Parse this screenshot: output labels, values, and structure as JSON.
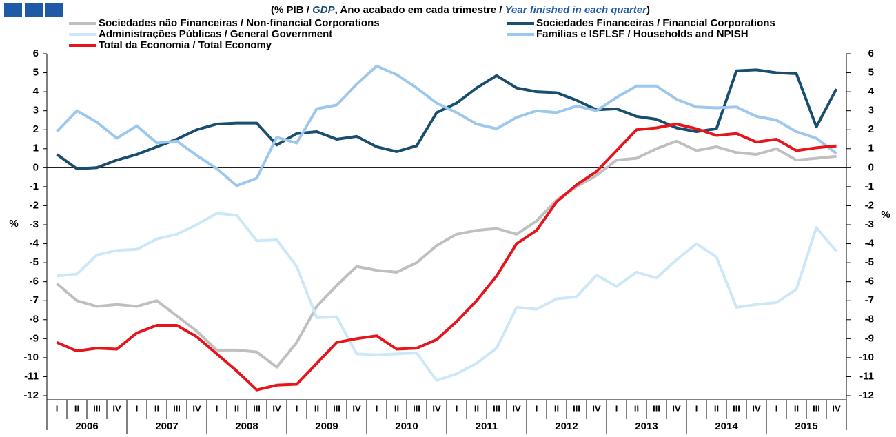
{
  "chart_data": {
    "type": "line",
    "title_parts": [
      "(% PIB / ",
      "GDP",
      ", Ano acabado em cada trimestre / ",
      "Year finished in each quarter",
      ")"
    ],
    "y_label": "%",
    "y2_label": "%",
    "categories": [
      "I",
      "II",
      "III",
      "IV",
      "I",
      "II",
      "III",
      "IV",
      "I",
      "II",
      "III",
      "IV",
      "I",
      "II",
      "III",
      "IV",
      "I",
      "II",
      "III",
      "IV",
      "I",
      "II",
      "III",
      "IV",
      "I",
      "II",
      "III",
      "IV",
      "I",
      "II",
      "III",
      "IV",
      "I",
      "II",
      "III",
      "IV",
      "I",
      "II",
      "III",
      "IV"
    ],
    "years": [
      "2006",
      "2007",
      "2008",
      "2009",
      "2010",
      "2011",
      "2012",
      "2013",
      "2014",
      "2015"
    ],
    "ylim": [
      -12,
      6
    ],
    "yticks": [
      -12,
      -11,
      -10,
      -9,
      -8,
      -7,
      -6,
      -5,
      -4,
      -3,
      -2,
      -1,
      0,
      1,
      2,
      3,
      4,
      5,
      6
    ],
    "y2lim": [
      -12,
      6
    ],
    "y2ticks": [
      -12,
      -11,
      -10,
      -9,
      -8,
      -7,
      -6,
      -5,
      -4,
      -3,
      -2,
      -1,
      0,
      1,
      2,
      3,
      4,
      5,
      6
    ],
    "series": [
      {
        "name": "Sociedades não Financeiras / Non-financial Corporations",
        "color": "#bfbfbf",
        "values": [
          -6.1,
          -7.0,
          -7.3,
          -7.2,
          -7.3,
          -7.0,
          -7.8,
          -8.6,
          -9.6,
          -9.6,
          -9.7,
          -10.5,
          -9.2,
          -7.3,
          -6.2,
          -5.2,
          -5.4,
          -5.5,
          -5.0,
          -4.1,
          -3.5,
          -3.3,
          -3.2,
          -3.5,
          -2.8,
          -1.7,
          -1.0,
          -0.4,
          0.4,
          0.5,
          1.0,
          1.4,
          0.9,
          1.1,
          0.8,
          0.7,
          1.0,
          0.4,
          0.5,
          0.6
        ]
      },
      {
        "name": "Sociedades Financeiras / Financial Corporations",
        "color": "#1a4e6e",
        "values": [
          0.7,
          -0.05,
          0.0,
          0.4,
          0.7,
          1.1,
          1.5,
          2.0,
          2.3,
          2.35,
          2.35,
          1.2,
          1.8,
          1.9,
          1.5,
          1.65,
          1.1,
          0.85,
          1.15,
          2.9,
          3.4,
          4.2,
          4.85,
          4.2,
          4.0,
          3.95,
          3.55,
          3.05,
          3.1,
          2.7,
          2.55,
          2.1,
          1.9,
          2.05,
          5.1,
          5.15,
          5.0,
          4.95,
          2.15,
          4.15
        ]
      },
      {
        "name": "Administrações Públicas / General Government",
        "color": "#cce8f8",
        "values": [
          -5.7,
          -5.6,
          -4.6,
          -4.35,
          -4.3,
          -3.75,
          -3.5,
          -3.0,
          -2.4,
          -2.5,
          -3.85,
          -3.8,
          -5.2,
          -7.9,
          -7.85,
          -9.8,
          -9.85,
          -9.8,
          -9.75,
          -11.2,
          -10.85,
          -10.3,
          -9.5,
          -7.35,
          -7.45,
          -6.9,
          -6.8,
          -5.65,
          -6.25,
          -5.5,
          -5.8,
          -4.85,
          -4.0,
          -4.7,
          -7.35,
          -7.2,
          -7.1,
          -6.4,
          -3.15,
          -4.4
        ]
      },
      {
        "name": "Famílias e ISFLSF / Households and NPISH",
        "color": "#9dc8ee",
        "values": [
          1.9,
          3.0,
          2.4,
          1.55,
          2.2,
          1.3,
          1.4,
          0.65,
          -0.05,
          -0.95,
          -0.55,
          1.6,
          1.3,
          3.1,
          3.3,
          4.4,
          5.35,
          4.9,
          4.2,
          3.4,
          2.9,
          2.3,
          2.05,
          2.65,
          3.0,
          2.9,
          3.25,
          3.0,
          3.7,
          4.3,
          4.3,
          3.6,
          3.2,
          3.15,
          3.2,
          2.7,
          2.5,
          1.9,
          1.55,
          0.75
        ]
      },
      {
        "name": "Total da Economia / Total Economy",
        "color": "#e8141b",
        "values": [
          -9.2,
          -9.65,
          -9.5,
          -9.55,
          -8.7,
          -8.3,
          -8.3,
          -8.9,
          -9.8,
          -10.7,
          -11.7,
          -11.45,
          -11.4,
          -10.3,
          -9.2,
          -9.0,
          -8.85,
          -9.55,
          -9.5,
          -9.05,
          -8.1,
          -7.0,
          -5.7,
          -4.0,
          -3.3,
          -1.8,
          -0.9,
          -0.2,
          0.9,
          2.0,
          2.1,
          2.3,
          2.05,
          1.7,
          1.8,
          1.35,
          1.5,
          0.9,
          1.05,
          1.15
        ]
      }
    ]
  }
}
